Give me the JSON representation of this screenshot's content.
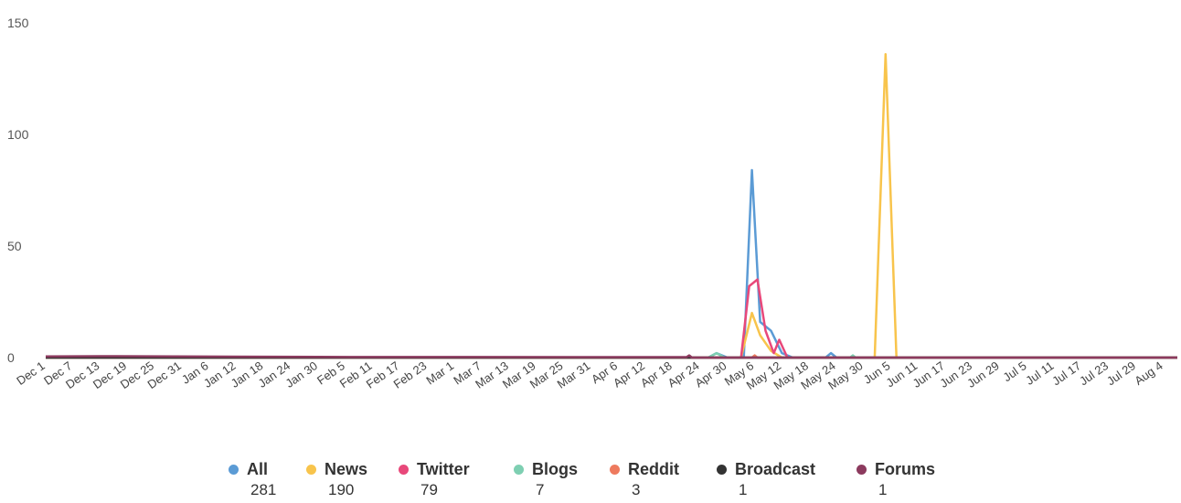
{
  "chart_data": {
    "type": "line",
    "x_tick_labels": [
      "Dec 1",
      "Dec 7",
      "Dec 13",
      "Dec 19",
      "Dec 25",
      "Dec 31",
      "Jan 6",
      "Jan 12",
      "Jan 18",
      "Jan 24",
      "Jan 30",
      "Feb 5",
      "Feb 11",
      "Feb 17",
      "Feb 23",
      "Mar 1",
      "Mar 7",
      "Mar 13",
      "Mar 19",
      "Mar 25",
      "Mar 31",
      "Apr 6",
      "Apr 12",
      "Apr 18",
      "Apr 24",
      "Apr 30",
      "May 6",
      "May 12",
      "May 18",
      "May 24",
      "May 30",
      "Jun 5",
      "Jun 11",
      "Jun 17",
      "Jun 23",
      "Jun 29",
      "Jul 5",
      "Jul 11",
      "Jul 17",
      "Jul 23",
      "Jul 29",
      "Aug 4"
    ],
    "y_tick_labels": [
      "150",
      "100",
      "50",
      "0"
    ],
    "ylim": [
      0,
      150
    ],
    "grid": false,
    "legend_position": "bottom",
    "series": [
      {
        "name": "All",
        "count": "281",
        "color": "#5b9bd5",
        "points": [
          [
            0,
            0
          ],
          [
            24.3,
            0
          ],
          [
            24.6,
            2
          ],
          [
            25,
            0
          ],
          [
            25.6,
            0
          ],
          [
            25.9,
            84
          ],
          [
            26.2,
            16
          ],
          [
            26.6,
            12
          ],
          [
            27,
            2
          ],
          [
            27.4,
            0
          ],
          [
            28.6,
            0
          ],
          [
            28.8,
            2
          ],
          [
            29,
            0
          ],
          [
            41.5,
            0
          ]
        ]
      },
      {
        "name": "News",
        "count": "190",
        "color": "#f8c44c",
        "points": [
          [
            0,
            0
          ],
          [
            25.5,
            0
          ],
          [
            25.9,
            20
          ],
          [
            26.2,
            10
          ],
          [
            26.6,
            3
          ],
          [
            27,
            0
          ],
          [
            30.4,
            0
          ],
          [
            30.8,
            136
          ],
          [
            31.2,
            0
          ],
          [
            41.5,
            0
          ]
        ]
      },
      {
        "name": "Twitter",
        "count": "79",
        "color": "#e8487a",
        "points": [
          [
            0,
            0
          ],
          [
            25.5,
            0
          ],
          [
            25.8,
            32
          ],
          [
            26.1,
            35
          ],
          [
            26.4,
            12
          ],
          [
            26.7,
            2
          ],
          [
            26.9,
            8
          ],
          [
            27.2,
            0
          ],
          [
            41.5,
            0
          ]
        ]
      },
      {
        "name": "Blogs",
        "count": "7",
        "color": "#7ecfb2",
        "points": [
          [
            0,
            0
          ],
          [
            24.3,
            0
          ],
          [
            24.6,
            2
          ],
          [
            24.9,
            0
          ],
          [
            29.5,
            0
          ],
          [
            29.6,
            1
          ],
          [
            29.7,
            0
          ],
          [
            41.5,
            0
          ]
        ]
      },
      {
        "name": "Reddit",
        "count": "3",
        "color": "#ee7a5e",
        "points": [
          [
            0,
            0
          ],
          [
            25.9,
            0
          ],
          [
            26,
            1
          ],
          [
            26.1,
            0
          ],
          [
            41.5,
            0
          ]
        ]
      },
      {
        "name": "Broadcast",
        "count": "1",
        "color": "#333333",
        "points": [
          [
            0,
            0
          ],
          [
            41.5,
            0
          ]
        ]
      },
      {
        "name": "Forums",
        "count": "1",
        "color": "#8c3a5e",
        "points": [
          [
            0,
            0.5
          ],
          [
            2,
            0.6
          ],
          [
            10,
            0.3
          ],
          [
            23.5,
            0.2
          ],
          [
            23.6,
            1
          ],
          [
            23.7,
            0
          ],
          [
            41.5,
            0
          ]
        ]
      }
    ]
  }
}
